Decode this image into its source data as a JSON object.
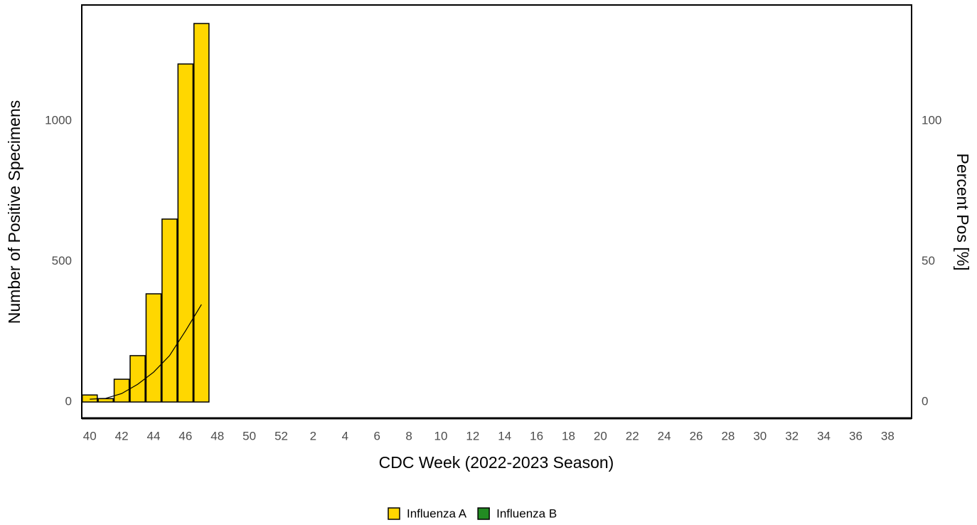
{
  "chart_data": {
    "type": "bar",
    "x_label": "CDC Week (2022-2023 Season)",
    "y_label": "Number of Positive Specimens",
    "y2_label": "Percent Pos [%]",
    "stacked": true,
    "categories": [
      "40",
      null,
      "42",
      null,
      "44",
      null,
      "46",
      null,
      "48",
      null,
      "50",
      null,
      "52",
      null,
      "2",
      null,
      "4",
      null,
      "6",
      null,
      "8",
      null,
      "10",
      null,
      "12",
      null,
      "14",
      null,
      "16",
      null,
      "18",
      null,
      "20",
      null,
      "22",
      null,
      "24",
      null,
      "26",
      null,
      "28",
      null,
      "30",
      null,
      "32",
      null,
      "34",
      null,
      "36",
      null,
      "38",
      null
    ],
    "series": [
      {
        "name": "Influenza A",
        "color": "#ffd700",
        "values": [
          25,
          12,
          81,
          165,
          385,
          651,
          1203,
          1347,
          null,
          null,
          null,
          null,
          null,
          null,
          null,
          null,
          null,
          null,
          null,
          null,
          null,
          null,
          null,
          null,
          null,
          null,
          null,
          null,
          null,
          null,
          null,
          null,
          null,
          null,
          null,
          null,
          null,
          null,
          null,
          null,
          null,
          null,
          null,
          null,
          null,
          null,
          null,
          null,
          null,
          null,
          null,
          null
        ]
      },
      {
        "name": "Influenza B",
        "color": "#228b22",
        "values": [
          0,
          0,
          0,
          0,
          0,
          0,
          0,
          0,
          null,
          null,
          null,
          null,
          null,
          null,
          null,
          null,
          null,
          null,
          null,
          null,
          null,
          null,
          null,
          null,
          null,
          null,
          null,
          null,
          null,
          null,
          null,
          null,
          null,
          null,
          null,
          null,
          null,
          null,
          null,
          null,
          null,
          null,
          null,
          null,
          null,
          null,
          null,
          null,
          null,
          null,
          null,
          null
        ]
      },
      {
        "type": "line",
        "axis": "y2",
        "color": "#000000",
        "values": [
          1,
          1.3,
          3,
          6.3,
          10.6,
          16.5,
          25.3,
          34.7,
          null,
          null,
          null,
          null,
          null,
          null,
          null,
          null,
          null,
          null,
          null,
          null,
          null,
          null,
          null,
          null,
          null,
          null,
          null,
          null,
          null,
          null,
          null,
          null,
          null,
          null,
          null,
          null,
          null,
          null,
          null,
          null,
          null,
          null,
          null,
          null,
          null,
          null,
          null,
          null,
          null,
          null,
          null,
          null
        ]
      }
    ],
    "ylim": [
      -58,
      1413
    ],
    "yticks": [
      0,
      500,
      1000
    ],
    "y2lim": [
      -5.8,
      141.3
    ],
    "y2ticks": [
      0,
      50,
      100
    ],
    "grid": false,
    "legend": "bottom"
  }
}
